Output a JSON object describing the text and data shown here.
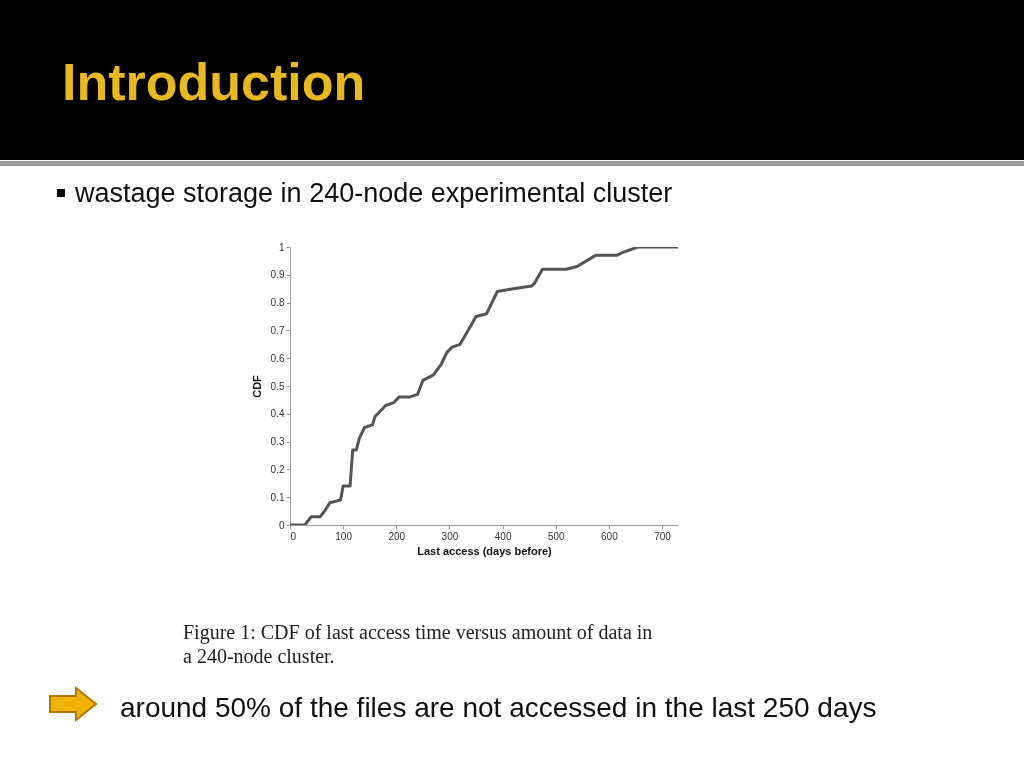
{
  "chart_data": {
    "type": "line",
    "title": "Introduction",
    "subtitle": "wastage storage in 240-node experimental cluster",
    "xlabel": "Last access (days before)",
    "ylabel": "CDF",
    "annotations": [
      "Figure 1: CDF of last access time versus amount of data in a 240-node cluster.",
      "around 50% of the files are not accessed in the last 250 days"
    ],
    "x": [
      0,
      28,
      40,
      57,
      65,
      75,
      95,
      100,
      113,
      118,
      125,
      130,
      140,
      155,
      160,
      180,
      195,
      205,
      225,
      240,
      250,
      270,
      285,
      295,
      305,
      320,
      335,
      350,
      370,
      375,
      390,
      420,
      455,
      460,
      475,
      520,
      540,
      575,
      615,
      625,
      655,
      730
    ],
    "series": [
      {
        "color": "#555555",
        "values": [
          0,
          0,
          0.03,
          0.03,
          0.05,
          0.08,
          0.09,
          0.14,
          0.14,
          0.27,
          0.27,
          0.31,
          0.35,
          0.36,
          0.39,
          0.43,
          0.44,
          0.46,
          0.46,
          0.47,
          0.52,
          0.54,
          0.58,
          0.62,
          0.64,
          0.65,
          0.7,
          0.75,
          0.76,
          0.78,
          0.84,
          0.85,
          0.86,
          0.87,
          0.92,
          0.92,
          0.93,
          0.97,
          0.97,
          0.98,
          1,
          1
        ]
      }
    ],
    "xlim": [
      0,
      730
    ],
    "xticks": [
      0,
      100,
      200,
      300,
      400,
      500,
      600,
      700
    ],
    "ylim": [
      0,
      1
    ],
    "yticks": [
      0,
      0.1,
      0.2,
      0.3,
      0.4,
      0.5,
      0.6,
      0.7,
      0.8,
      0.9,
      1
    ],
    "grid": false,
    "marker": "none",
    "line_style": "solid"
  }
}
